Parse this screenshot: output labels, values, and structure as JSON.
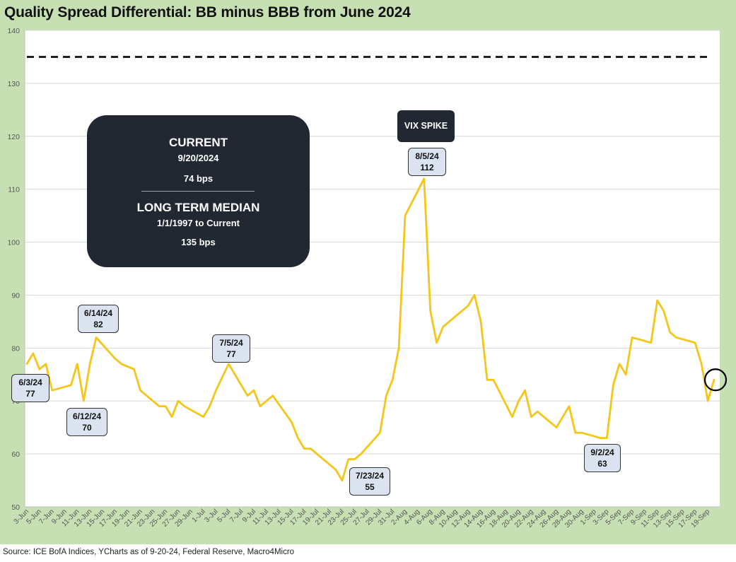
{
  "title": "Quality Spread Differential: BB minus BBB from June 2024",
  "source": "Source: ICE BofA Indices, YCharts as of 9-20-24, Federal Reserve, Macro4Micro",
  "colors": {
    "frame": "#c6e0b4",
    "line": "#f5c518",
    "box": "#222831",
    "callout_fill": "#dbe2f0",
    "median_line": "#222222"
  },
  "info_box": {
    "current_title": "CURRENT",
    "current_date": "9/20/2024",
    "current_value": "74 bps",
    "median_title": "LONG TERM MEDIAN",
    "median_range": "1/1/1997 to Current",
    "median_value": "135 bps"
  },
  "vix_label": "VIX SPIKE",
  "callouts": [
    {
      "date": "6/3/24",
      "value": "77"
    },
    {
      "date": "6/12/24",
      "value": "70"
    },
    {
      "date": "6/14/24",
      "value": "82"
    },
    {
      "date": "7/5/24",
      "value": "77"
    },
    {
      "date": "7/23/24",
      "value": "55"
    },
    {
      "date": "8/5/24",
      "value": "112"
    },
    {
      "date": "9/2/24",
      "value": "63"
    }
  ],
  "chart_data": {
    "type": "line",
    "title": "Quality Spread Differential: BB minus BBB from June 2024",
    "xlabel": "",
    "ylabel": "",
    "ylim": [
      50,
      140
    ],
    "yticks": [
      50,
      60,
      70,
      80,
      90,
      100,
      110,
      120,
      130,
      140
    ],
    "grid": true,
    "x_tick_labels": [
      "3-Jun",
      "5-Jun",
      "7-Jun",
      "9-Jun",
      "11-Jun",
      "13-Jun",
      "15-Jun",
      "17-Jun",
      "19-Jun",
      "21-Jun",
      "23-Jun",
      "25-Jun",
      "27-Jun",
      "29-Jun",
      "1-Jul",
      "3-Jul",
      "5-Jul",
      "7-Jul",
      "9-Jul",
      "11-Jul",
      "13-Jul",
      "15-Jul",
      "17-Jul",
      "19-Jul",
      "21-Jul",
      "23-Jul",
      "25-Jul",
      "27-Jul",
      "29-Jul",
      "31-Jul",
      "2-Aug",
      "4-Aug",
      "6-Aug",
      "8-Aug",
      "10-Aug",
      "12-Aug",
      "14-Aug",
      "16-Aug",
      "18-Aug",
      "20-Aug",
      "22-Aug",
      "24-Aug",
      "26-Aug",
      "28-Aug",
      "30-Aug",
      "1-Sep",
      "3-Sep",
      "5-Sep",
      "7-Sep",
      "9-Sep",
      "11-Sep",
      "13-Sep",
      "15-Sep",
      "17-Sep",
      "19-Sep"
    ],
    "reference_line": {
      "value": 135,
      "style": "dashed"
    },
    "series": [
      {
        "values": [
          [
            "3-Jun",
            77
          ],
          [
            "4-Jun",
            79
          ],
          [
            "5-Jun",
            76
          ],
          [
            "6-Jun",
            77
          ],
          [
            "7-Jun",
            72
          ],
          [
            "10-Jun",
            73
          ],
          [
            "11-Jun",
            77
          ],
          [
            "12-Jun",
            70
          ],
          [
            "13-Jun",
            77
          ],
          [
            "14-Jun",
            82
          ],
          [
            "17-Jun",
            78
          ],
          [
            "18-Jun",
            77
          ],
          [
            "20-Jun",
            76
          ],
          [
            "21-Jun",
            72
          ],
          [
            "24-Jun",
            69
          ],
          [
            "25-Jun",
            69
          ],
          [
            "26-Jun",
            67
          ],
          [
            "27-Jun",
            70
          ],
          [
            "28-Jun",
            69
          ],
          [
            "1-Jul",
            67
          ],
          [
            "2-Jul",
            69
          ],
          [
            "3-Jul",
            72
          ],
          [
            "5-Jul",
            77
          ],
          [
            "8-Jul",
            71
          ],
          [
            "9-Jul",
            72
          ],
          [
            "10-Jul",
            69
          ],
          [
            "11-Jul",
            70
          ],
          [
            "12-Jul",
            71
          ],
          [
            "15-Jul",
            66
          ],
          [
            "16-Jul",
            63
          ],
          [
            "17-Jul",
            61
          ],
          [
            "18-Jul",
            61
          ],
          [
            "22-Jul",
            57
          ],
          [
            "23-Jul",
            55
          ],
          [
            "24-Jul",
            59
          ],
          [
            "25-Jul",
            59
          ],
          [
            "26-Jul",
            60
          ],
          [
            "29-Jul",
            64
          ],
          [
            "30-Jul",
            71
          ],
          [
            "31-Jul",
            74
          ],
          [
            "1-Aug",
            80
          ],
          [
            "2-Aug",
            105
          ],
          [
            "5-Aug",
            112
          ],
          [
            "6-Aug",
            87
          ],
          [
            "7-Aug",
            81
          ],
          [
            "8-Aug",
            84
          ],
          [
            "12-Aug",
            88
          ],
          [
            "13-Aug",
            90
          ],
          [
            "14-Aug",
            85
          ],
          [
            "15-Aug",
            74
          ],
          [
            "16-Aug",
            74
          ],
          [
            "19-Aug",
            67
          ],
          [
            "20-Aug",
            70
          ],
          [
            "21-Aug",
            72
          ],
          [
            "22-Aug",
            67
          ],
          [
            "23-Aug",
            68
          ],
          [
            "26-Aug",
            65
          ],
          [
            "27-Aug",
            67
          ],
          [
            "28-Aug",
            69
          ],
          [
            "29-Aug",
            64
          ],
          [
            "30-Aug",
            64
          ],
          [
            "2-Sep",
            63
          ],
          [
            "3-Sep",
            63
          ],
          [
            "4-Sep",
            73
          ],
          [
            "5-Sep",
            77
          ],
          [
            "6-Sep",
            75
          ],
          [
            "7-Sep",
            82
          ],
          [
            "10-Sep",
            81
          ],
          [
            "11-Sep",
            89
          ],
          [
            "12-Sep",
            87
          ],
          [
            "13-Sep",
            83
          ],
          [
            "14-Sep",
            82
          ],
          [
            "17-Sep",
            81
          ],
          [
            "18-Sep",
            77
          ],
          [
            "19-Sep",
            70
          ],
          [
            "20-Sep",
            74
          ]
        ]
      }
    ],
    "highlight_last_point": true
  }
}
